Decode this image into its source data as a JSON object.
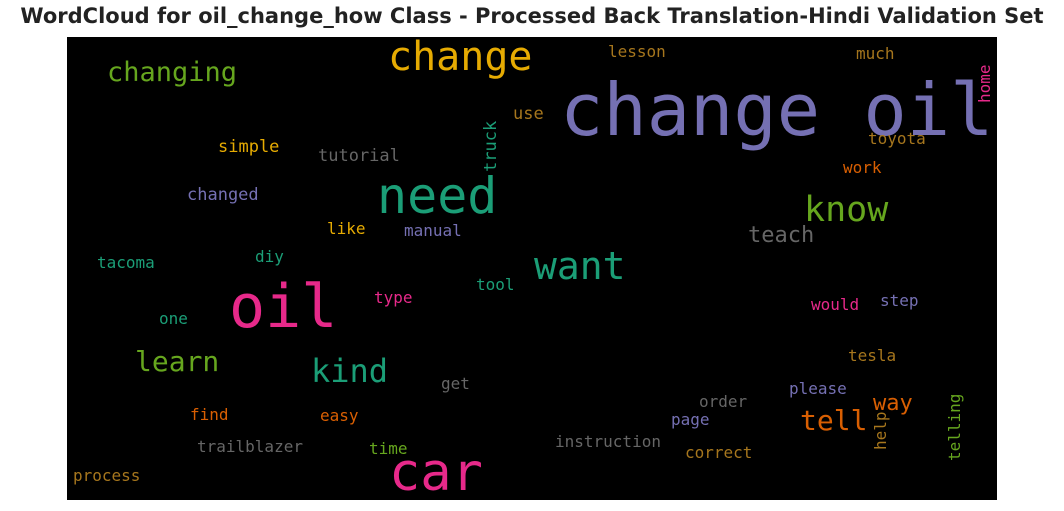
{
  "title": "WordCloud for oil_change_how Class - Processed Back Translation-Hindi Validation Set",
  "colors": {
    "background": "#000000",
    "purple": "#7570b3",
    "green": "#1b9e77",
    "pink": "#e7298a",
    "lime": "#66a61e",
    "gold": "#e6ab02",
    "orange": "#d95f02",
    "brown": "#a6761d",
    "gray": "#666666"
  },
  "chart_data": {
    "type": "wordcloud",
    "title": "WordCloud for oil_change_how Class - Processed Back Translation-Hindi Validation Set",
    "words": [
      {
        "text": "change oil",
        "color": "#7570b3",
        "weight": 1.0
      },
      {
        "text": "car",
        "color": "#e7298a",
        "weight": 0.72
      },
      {
        "text": "oil",
        "color": "#e7298a",
        "weight": 0.9
      },
      {
        "text": "need",
        "color": "#1b9e77",
        "weight": 0.75
      },
      {
        "text": "change",
        "color": "#e6ab02",
        "weight": 0.62
      },
      {
        "text": "want",
        "color": "#1b9e77",
        "weight": 0.55
      },
      {
        "text": "know",
        "color": "#66a61e",
        "weight": 0.5
      },
      {
        "text": "kind",
        "color": "#1b9e77",
        "weight": 0.46
      },
      {
        "text": "learn",
        "color": "#66a61e",
        "weight": 0.42
      },
      {
        "text": "tell",
        "color": "#d95f02",
        "weight": 0.42
      },
      {
        "text": "changing",
        "color": "#66a61e",
        "weight": 0.4
      },
      {
        "text": "teach",
        "color": "#666666",
        "weight": 0.33
      },
      {
        "text": "way",
        "color": "#d95f02",
        "weight": 0.33
      },
      {
        "text": "tutorial",
        "color": "#666666",
        "weight": 0.28
      },
      {
        "text": "simple",
        "color": "#e6ab02",
        "weight": 0.28
      },
      {
        "text": "changed",
        "color": "#7570b3",
        "weight": 0.28
      },
      {
        "text": "truck",
        "color": "#1b9e77",
        "weight": 0.28
      },
      {
        "text": "use",
        "color": "#a6761d",
        "weight": 0.28
      },
      {
        "text": "lesson",
        "color": "#a6761d",
        "weight": 0.26
      },
      {
        "text": "much",
        "color": "#a6761d",
        "weight": 0.26
      },
      {
        "text": "home",
        "color": "#e7298a",
        "weight": 0.26
      },
      {
        "text": "toyota",
        "color": "#a6761d",
        "weight": 0.26
      },
      {
        "text": "work",
        "color": "#d95f02",
        "weight": 0.26
      },
      {
        "text": "like",
        "color": "#e6ab02",
        "weight": 0.26
      },
      {
        "text": "manual",
        "color": "#7570b3",
        "weight": 0.26
      },
      {
        "text": "diy",
        "color": "#1b9e77",
        "weight": 0.26
      },
      {
        "text": "tacoma",
        "color": "#1b9e77",
        "weight": 0.26
      },
      {
        "text": "tool",
        "color": "#1b9e77",
        "weight": 0.26
      },
      {
        "text": "type",
        "color": "#e7298a",
        "weight": 0.26
      },
      {
        "text": "one",
        "color": "#1b9e77",
        "weight": 0.26
      },
      {
        "text": "would",
        "color": "#e7298a",
        "weight": 0.26
      },
      {
        "text": "step",
        "color": "#7570b3",
        "weight": 0.26
      },
      {
        "text": "tesla",
        "color": "#a6761d",
        "weight": 0.26
      },
      {
        "text": "get",
        "color": "#666666",
        "weight": 0.26
      },
      {
        "text": "please",
        "color": "#7570b3",
        "weight": 0.26
      },
      {
        "text": "order",
        "color": "#666666",
        "weight": 0.26
      },
      {
        "text": "find",
        "color": "#d95f02",
        "weight": 0.26
      },
      {
        "text": "easy",
        "color": "#d95f02",
        "weight": 0.26
      },
      {
        "text": "page",
        "color": "#7570b3",
        "weight": 0.26
      },
      {
        "text": "help",
        "color": "#a6761d",
        "weight": 0.26
      },
      {
        "text": "telling",
        "color": "#66a61e",
        "weight": 0.26
      },
      {
        "text": "trailblazer",
        "color": "#666666",
        "weight": 0.26
      },
      {
        "text": "time",
        "color": "#66a61e",
        "weight": 0.26
      },
      {
        "text": "instruction",
        "color": "#666666",
        "weight": 0.26
      },
      {
        "text": "correct",
        "color": "#a6761d",
        "weight": 0.26
      },
      {
        "text": "process",
        "color": "#a6761d",
        "weight": 0.26
      }
    ]
  }
}
